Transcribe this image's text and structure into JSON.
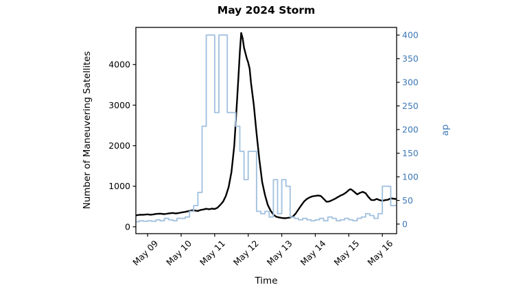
{
  "chart_data": {
    "type": "line",
    "title": "May 2024 Storm",
    "xlabel": "Time",
    "x_axis": {
      "tick_labels": [
        "May 09",
        "May 10",
        "May 11",
        "May 12",
        "May 13",
        "May 14",
        "May 15",
        "May 16"
      ],
      "tick_hours": [
        24,
        48,
        72,
        96,
        120,
        144,
        168,
        192
      ],
      "range_hours": [
        15.6,
        202.2
      ],
      "tick_label_rotation_deg": 45
    },
    "left_axis": {
      "label": "Number of Maneuvering Satellites",
      "tick_values": [
        0,
        1000,
        2000,
        3000,
        4000
      ],
      "range": [
        -169,
        4917
      ],
      "color": "#000000"
    },
    "right_axis": {
      "label": "ap",
      "tick_values": [
        0,
        50,
        100,
        150,
        200,
        250,
        300,
        350,
        400
      ],
      "range": [
        -20.3,
        416.2
      ],
      "color": "#3c78b4"
    },
    "grid": false,
    "legend": "none",
    "series": [
      {
        "name": "Number of Maneuvering Satellites",
        "axis": "left",
        "style": "line",
        "color": "#000000",
        "line_width": 2.4,
        "points": [
          [
            15.6,
            280
          ],
          [
            18,
            295
          ],
          [
            21,
            298
          ],
          [
            24,
            308
          ],
          [
            26,
            298
          ],
          [
            28,
            305
          ],
          [
            30,
            318
          ],
          [
            33,
            325
          ],
          [
            36,
            312
          ],
          [
            39,
            330
          ],
          [
            42,
            342
          ],
          [
            44,
            330
          ],
          [
            46,
            338
          ],
          [
            48,
            352
          ],
          [
            51,
            368
          ],
          [
            54,
            392
          ],
          [
            56,
            408
          ],
          [
            58,
            400
          ],
          [
            60,
            390
          ],
          [
            62,
            415
          ],
          [
            64,
            428
          ],
          [
            66,
            445
          ],
          [
            68,
            432
          ],
          [
            70,
            448
          ],
          [
            72,
            440
          ],
          [
            74,
            470
          ],
          [
            76,
            540
          ],
          [
            78,
            620
          ],
          [
            80,
            760
          ],
          [
            82,
            980
          ],
          [
            84,
            1350
          ],
          [
            86,
            2000
          ],
          [
            88,
            3100
          ],
          [
            89,
            3700
          ],
          [
            90,
            4300
          ],
          [
            91,
            4780
          ],
          [
            92,
            4650
          ],
          [
            93,
            4420
          ],
          [
            94,
            4280
          ],
          [
            95,
            4150
          ],
          [
            96,
            4050
          ],
          [
            97,
            3900
          ],
          [
            98,
            3550
          ],
          [
            100,
            3000
          ],
          [
            102,
            2300
          ],
          [
            104,
            1650
          ],
          [
            106,
            1100
          ],
          [
            108,
            780
          ],
          [
            110,
            540
          ],
          [
            112,
            400
          ],
          [
            114,
            300
          ],
          [
            116,
            248
          ],
          [
            118,
            232
          ],
          [
            120,
            218
          ],
          [
            122,
            212
          ],
          [
            124,
            218
          ],
          [
            126,
            228
          ],
          [
            128,
            255
          ],
          [
            130,
            330
          ],
          [
            132,
            430
          ],
          [
            134,
            530
          ],
          [
            136,
            625
          ],
          [
            138,
            688
          ],
          [
            140,
            725
          ],
          [
            142,
            752
          ],
          [
            144,
            762
          ],
          [
            146,
            772
          ],
          [
            148,
            758
          ],
          [
            150,
            690
          ],
          [
            152,
            618
          ],
          [
            154,
            625
          ],
          [
            156,
            655
          ],
          [
            158,
            690
          ],
          [
            160,
            730
          ],
          [
            162,
            768
          ],
          [
            164,
            800
          ],
          [
            166,
            845
          ],
          [
            168,
            905
          ],
          [
            169,
            928
          ],
          [
            170,
            915
          ],
          [
            172,
            858
          ],
          [
            174,
            800
          ],
          [
            176,
            838
          ],
          [
            178,
            862
          ],
          [
            180,
            828
          ],
          [
            182,
            735
          ],
          [
            184,
            662
          ],
          [
            186,
            658
          ],
          [
            188,
            688
          ],
          [
            190,
            658
          ],
          [
            192,
            642
          ],
          [
            194,
            658
          ],
          [
            196,
            668
          ],
          [
            198,
            702
          ],
          [
            200,
            692
          ],
          [
            202.2,
            682
          ]
        ]
      },
      {
        "name": "ap",
        "axis": "right",
        "style": "step",
        "color": "#a3c2e0",
        "line_width": 1.9,
        "step_hours": 3,
        "steps": [
          [
            15.6,
            5
          ],
          [
            18,
            7
          ],
          [
            21,
            6
          ],
          [
            24,
            7
          ],
          [
            27,
            6
          ],
          [
            30,
            9
          ],
          [
            33,
            7
          ],
          [
            36,
            12
          ],
          [
            39,
            9
          ],
          [
            42,
            7
          ],
          [
            45,
            12
          ],
          [
            48,
            12
          ],
          [
            51,
            15
          ],
          [
            54,
            27
          ],
          [
            57,
            39
          ],
          [
            60,
            67
          ],
          [
            63,
            207
          ],
          [
            66,
            400
          ],
          [
            69,
            400
          ],
          [
            72,
            236
          ],
          [
            75,
            400
          ],
          [
            78,
            400
          ],
          [
            81,
            236
          ],
          [
            84,
            236
          ],
          [
            87,
            207
          ],
          [
            90,
            154
          ],
          [
            93,
            94
          ],
          [
            96,
            154
          ],
          [
            99,
            154
          ],
          [
            102,
            27
          ],
          [
            105,
            22
          ],
          [
            108,
            27
          ],
          [
            111,
            15
          ],
          [
            114,
            94
          ],
          [
            117,
            22
          ],
          [
            120,
            94
          ],
          [
            123,
            80
          ],
          [
            126,
            15
          ],
          [
            129,
            12
          ],
          [
            132,
            9
          ],
          [
            135,
            12
          ],
          [
            138,
            9
          ],
          [
            141,
            7
          ],
          [
            144,
            9
          ],
          [
            147,
            12
          ],
          [
            150,
            7
          ],
          [
            153,
            15
          ],
          [
            156,
            12
          ],
          [
            159,
            7
          ],
          [
            162,
            9
          ],
          [
            165,
            12
          ],
          [
            168,
            9
          ],
          [
            171,
            7
          ],
          [
            174,
            12
          ],
          [
            177,
            15
          ],
          [
            180,
            22
          ],
          [
            183,
            18
          ],
          [
            186,
            12
          ],
          [
            189,
            22
          ],
          [
            192,
            80
          ],
          [
            195,
            80
          ],
          [
            198,
            39
          ],
          [
            201,
            39
          ]
        ]
      }
    ]
  }
}
